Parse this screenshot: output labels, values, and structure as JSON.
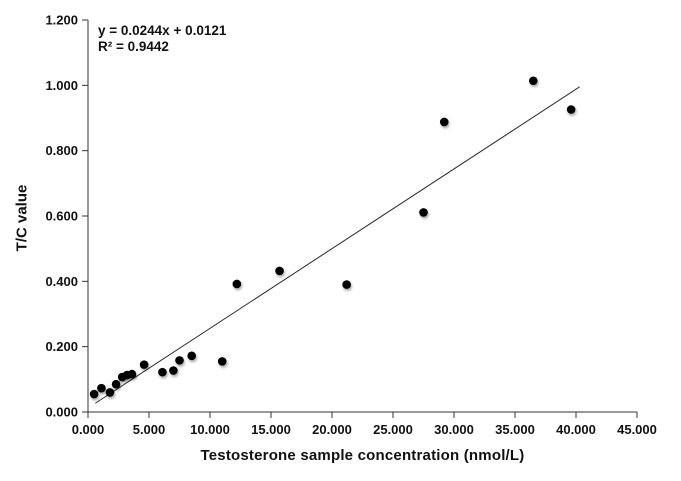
{
  "chart_data": {
    "type": "scatter",
    "title": "",
    "xlabel": "Testosterone sample concentration (nmol/L)",
    "ylabel": "T/C value",
    "annotation": {
      "equation": "y = 0.0244x + 0.0121",
      "r_squared": "R² = 0.9442"
    },
    "xlim": [
      0,
      45
    ],
    "ylim": [
      0,
      1.2
    ],
    "grid": false,
    "legend": "none",
    "x_ticks": [
      0,
      5,
      10,
      15,
      20,
      25,
      30,
      35,
      40,
      45
    ],
    "x_tick_labels": [
      "0.000",
      "5.000",
      "10.000",
      "15.000",
      "20.000",
      "25.000",
      "30.000",
      "35.000",
      "40.000",
      "45.000"
    ],
    "y_ticks": [
      0,
      0.2,
      0.4,
      0.6,
      0.8,
      1.0,
      1.2
    ],
    "y_tick_labels": [
      "0.000",
      "0.200",
      "0.400",
      "0.600",
      "0.800",
      "1.000",
      "1.200"
    ],
    "points": [
      [
        0.5,
        0.055
      ],
      [
        1.1,
        0.073
      ],
      [
        1.8,
        0.06
      ],
      [
        2.3,
        0.085
      ],
      [
        2.8,
        0.107
      ],
      [
        3.2,
        0.113
      ],
      [
        3.6,
        0.116
      ],
      [
        4.6,
        0.145
      ],
      [
        6.1,
        0.122
      ],
      [
        7.0,
        0.127
      ],
      [
        7.5,
        0.158
      ],
      [
        8.5,
        0.172
      ],
      [
        11.0,
        0.155
      ],
      [
        12.2,
        0.392
      ],
      [
        15.7,
        0.432
      ],
      [
        21.2,
        0.39
      ],
      [
        27.5,
        0.611
      ],
      [
        29.2,
        0.888
      ],
      [
        36.5,
        1.014
      ],
      [
        39.6,
        0.926
      ]
    ],
    "trendline": {
      "slope": 0.0244,
      "intercept": 0.0121,
      "x_start": 0.6,
      "x_end": 40.3
    },
    "colors": {
      "point": "#000000",
      "line": "#2b2b2b",
      "axis": "#333333",
      "text": "#111111",
      "background": "#ffffff"
    }
  }
}
